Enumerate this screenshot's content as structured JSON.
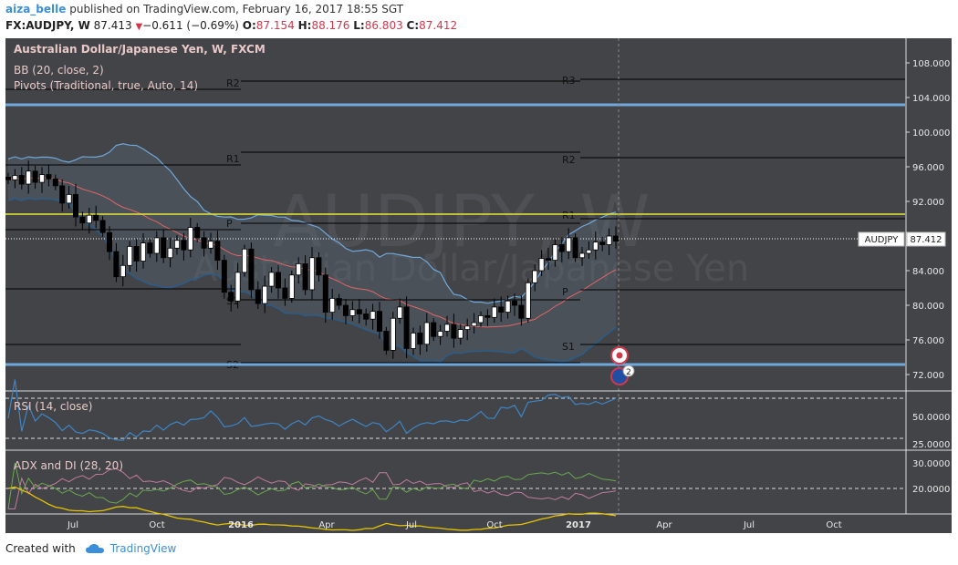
{
  "header": {
    "author": "aiza_belle",
    "published": "published on TradingView.com, February 16, 2017 18:55 SGT",
    "symbol": "FX:AUDJPY, W",
    "last": "87.413",
    "change_arrow": "▼",
    "change": "−0.611 (−0.69%)",
    "o_label": "O:",
    "o": "87.154",
    "h_label": "H:",
    "h": "88.176",
    "l_label": "L:",
    "l": "86.803",
    "c_label": "C:",
    "c": "87.412"
  },
  "legend": {
    "title": "Australian Dollar/Japanese Yen, W, FXCM",
    "bb": "BB (20, close, 2)",
    "pivots": "Pivots (Traditional, true, Auto, 14)"
  },
  "watermark": {
    "big": "AUDJPY, W",
    "small": "Australian Dollar/Japanese Yen"
  },
  "price_tag": {
    "symbol": "AUDJPY",
    "value": "87.412"
  },
  "rsi_label": "RSI (14, close)",
  "adx_label": "ADX and DI (28, 20)",
  "event_badge": "2",
  "footer": {
    "created": "Created with",
    "brand": "TradingView"
  },
  "colors": {
    "panel": "#434447",
    "candle_up": "#ffffff",
    "candle_down": "#000000",
    "bb_upper": "#6fa8dc",
    "bb_lower": "#2a5d8a",
    "bb_basis": "#e06666",
    "hline_blue": "#6fa8dc",
    "hline_yellow": "#e6e635",
    "rsi": "#3d85c6",
    "adx": "#e6c300",
    "di_plus": "#6aa84f",
    "di_minus": "#c27ba0"
  },
  "chart_data": [
    {
      "type": "candlestick",
      "title": "Australian Dollar/Japanese Yen, W, FXCM",
      "timeframe": "W",
      "ylim": [
        70,
        110
      ],
      "y_ticks": [
        "108.000",
        "104.000",
        "100.000",
        "96.000",
        "92.000",
        "88.000",
        "84.000",
        "80.000",
        "76.000",
        "72.000"
      ],
      "x_ticks": [
        "Jul",
        "Oct",
        "2016",
        "Apr",
        "Jul",
        "Oct",
        "2017",
        "Apr",
        "Jul",
        "Oct"
      ],
      "closes": [
        94.5,
        95.0,
        94.0,
        95.5,
        94.2,
        95.1,
        94.6,
        93.8,
        91.8,
        92.8,
        90.2,
        89.5,
        90.4,
        89.8,
        88.4,
        86.2,
        83.3,
        84.6,
        86.8,
        85.1,
        87.2,
        86.0,
        87.8,
        85.5,
        86.6,
        87.5,
        86.4,
        89.0,
        87.8,
        86.6,
        87.4,
        85.2,
        81.5,
        80.5,
        83.8,
        86.5,
        81.8,
        80.2,
        82.2,
        83.8,
        82.0,
        80.8,
        83.5,
        84.8,
        81.8,
        85.5,
        83.5,
        79.2,
        80.8,
        80.0,
        78.8,
        79.5,
        79.0,
        78.4,
        79.3,
        77.0,
        74.8,
        78.5,
        79.8,
        75.0,
        76.8,
        75.5,
        78.0,
        76.4,
        77.0,
        77.8,
        76.2,
        77.2,
        77.6,
        78.0,
        78.8,
        78.6,
        79.8,
        79.2,
        80.5,
        80.0,
        78.5,
        82.6,
        84.0,
        85.4,
        85.2,
        87.0,
        86.2,
        87.8,
        85.5,
        86.0,
        86.4,
        87.3,
        87.0,
        88.0,
        87.41
      ],
      "annotations": [
        "R3",
        "R2",
        "R1",
        "P",
        "S1",
        "S2"
      ],
      "hlines": [
        103.0,
        89.3,
        72.7
      ],
      "last_price": 87.412
    },
    {
      "type": "line",
      "title": "RSI (14, close)",
      "y_ticks": [
        "50.0000",
        "25.0000"
      ]
    },
    {
      "type": "line",
      "title": "ADX and DI (28, 20)",
      "y_ticks": [
        "30.0000",
        "20.0000"
      ]
    }
  ]
}
